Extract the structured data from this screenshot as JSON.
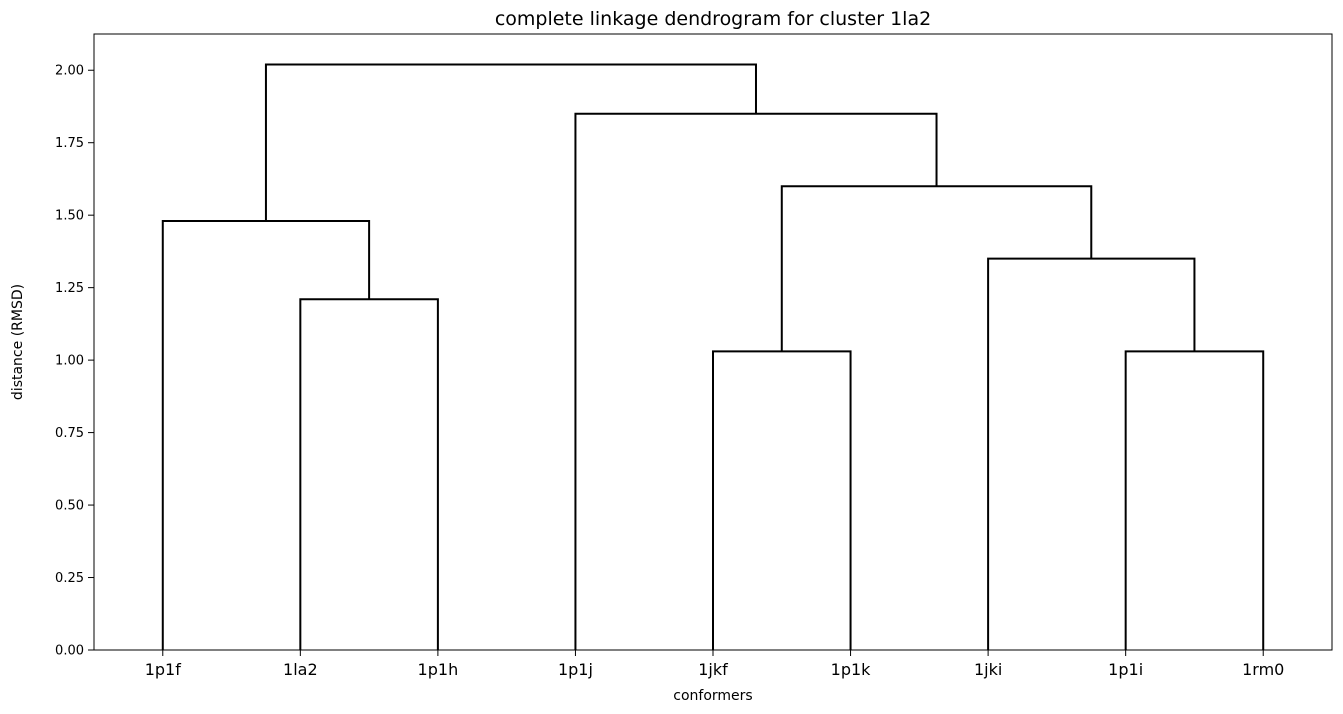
{
  "chart_data": {
    "type": "dendrogram",
    "title": "complete linkage dendrogram for cluster 1la2",
    "xlabel": "conformers",
    "ylabel": "distance (RMSD)",
    "leaves": [
      "1p1f",
      "1la2",
      "1p1h",
      "1p1j",
      "1jkf",
      "1p1k",
      "1jki",
      "1p1i",
      "1rm0"
    ],
    "merges": [
      {
        "left": "1la2",
        "right": "1p1h",
        "height": 1.21
      },
      {
        "left": "1jkf",
        "right": "1p1k",
        "height": 1.03
      },
      {
        "left": "1p1i",
        "right": "1rm0",
        "height": 1.03
      },
      {
        "left": "1jki",
        "right": "cluster(1p1i,1rm0)",
        "height": 1.35
      },
      {
        "left": "1p1f",
        "right": "cluster(1la2,1p1h)",
        "height": 1.48
      },
      {
        "left": "cluster(1jkf,1p1k)",
        "right": "cluster(1jki,1p1i,1rm0)",
        "height": 1.6
      },
      {
        "left": "1p1j",
        "right": "cluster(1jkf,1p1k,1jki,1p1i,1rm0)",
        "height": 1.85
      },
      {
        "left": "cluster(1p1f,1la2,1p1h)",
        "right": "cluster(1p1j,1jkf,1p1k,1jki,1p1i,1rm0)",
        "height": 2.02
      }
    ],
    "yticks": [
      "0.00",
      "0.25",
      "0.50",
      "0.75",
      "1.00",
      "1.25",
      "1.50",
      "1.75",
      "2.00"
    ],
    "ylim": [
      0,
      2.125
    ],
    "grid": false,
    "link_color": "#000000"
  }
}
